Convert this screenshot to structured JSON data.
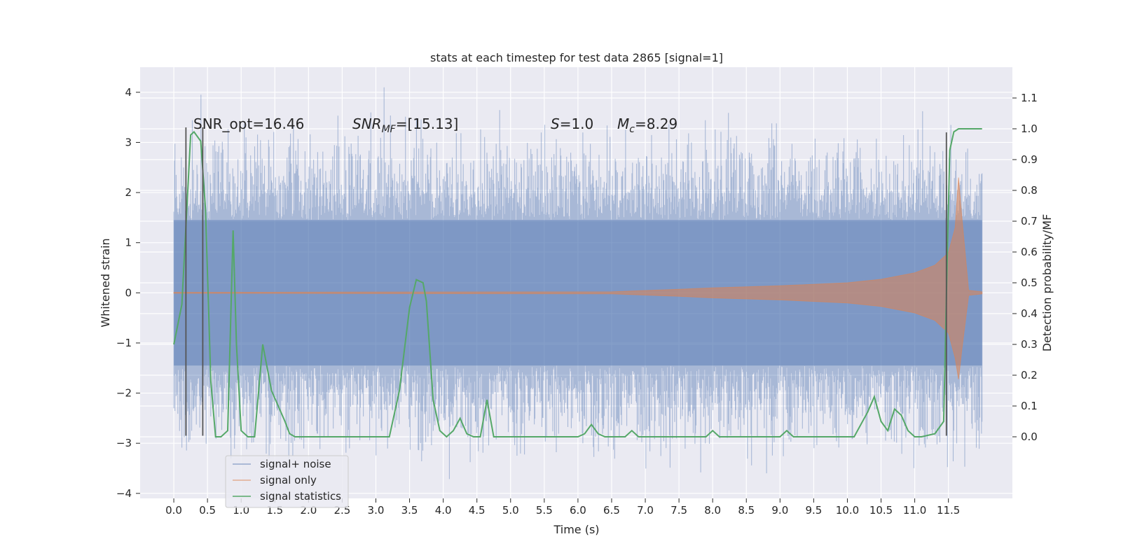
{
  "chart_data": {
    "type": "line",
    "title": "stats at each timestep for test data 2865 [signal=1]",
    "xlabel": "Time (s)",
    "ylabel_left": "Whitened strain",
    "ylabel_right": "Detection probability/MF",
    "xlim": [
      -0.5,
      12.45
    ],
    "ylim_left": [
      -4.1,
      4.5
    ],
    "ylim_right": [
      -0.2,
      1.2
    ],
    "x_ticks": [
      0.0,
      0.5,
      1.0,
      1.5,
      2.0,
      2.5,
      3.0,
      3.5,
      4.0,
      4.5,
      5.0,
      5.5,
      6.0,
      6.5,
      7.0,
      7.5,
      8.0,
      8.5,
      9.0,
      9.5,
      10.0,
      10.5,
      11.0,
      11.5
    ],
    "x_tick_labels": [
      "0.0",
      "0.5",
      "1.0",
      "1.5",
      "2.0",
      "2.5",
      "3.0",
      "3.5",
      "4.0",
      "4.5",
      "5.0",
      "5.5",
      "6.0",
      "6.5",
      "7.0",
      "7.5",
      "8.0",
      "8.5",
      "9.0",
      "9.5",
      "10.0",
      "10.5",
      "11.0",
      "11.5"
    ],
    "y_left_ticks": [
      -4,
      -3,
      -2,
      -1,
      0,
      1,
      2,
      3,
      4
    ],
    "y_left_tick_labels": [
      "−4",
      "−3",
      "−2",
      "−1",
      "0",
      "1",
      "2",
      "3",
      "4"
    ],
    "y_right_ticks": [
      0.0,
      0.1,
      0.2,
      0.3,
      0.4,
      0.5,
      0.6,
      0.7,
      0.8,
      0.9,
      1.0,
      1.1
    ],
    "y_right_tick_labels": [
      "0.0",
      "0.1",
      "0.2",
      "0.3",
      "0.4",
      "0.5",
      "0.6",
      "0.7",
      "0.8",
      "0.9",
      "1.0",
      "1.1"
    ],
    "grid": true,
    "legend_position": "lower-left",
    "annotations": {
      "snr_opt": "SNR_opt=16.46",
      "snr_mf_main": "SNR",
      "snr_mf_sub": "MF",
      "snr_mf_value": "=[15.13]",
      "s_main": "S",
      "s_value": "=1.0",
      "mc_main": "M",
      "mc_sub": "c",
      "mc_value": "=8.29"
    },
    "vertical_markers": [
      {
        "x": 0.18,
        "y_range": [
          -2.85,
          3.3
        ]
      },
      {
        "x": 0.43,
        "y_range": [
          -2.85,
          3.3
        ]
      },
      {
        "x": 11.47,
        "y_range": [
          -2.85,
          3.2
        ]
      }
    ],
    "series": [
      {
        "name": "signal+ noise",
        "color": "#4c72b0",
        "axis": "left",
        "x_range": [
          0.0,
          12.0
        ],
        "typical_amplitude": 1.45,
        "peak_amplitude": 4.1
      },
      {
        "name": "signal only",
        "color": "#dd8452",
        "axis": "left",
        "x": [
          0.0,
          6.5,
          7.5,
          8.0,
          9.0,
          10.0,
          10.5,
          11.0,
          11.3,
          11.5,
          11.6,
          11.65,
          11.7,
          11.8,
          12.0
        ],
        "envelope": [
          0.01,
          0.02,
          0.07,
          0.1,
          0.14,
          0.2,
          0.27,
          0.4,
          0.55,
          0.8,
          1.3,
          2.3,
          1.5,
          0.05,
          0.02
        ]
      },
      {
        "name": "signal statistics",
        "color": "#55a868",
        "axis": "right",
        "x": [
          0.0,
          0.12,
          0.25,
          0.3,
          0.4,
          0.47,
          0.55,
          0.62,
          0.7,
          0.8,
          0.88,
          0.93,
          1.0,
          1.1,
          1.2,
          1.32,
          1.45,
          1.55,
          1.65,
          1.72,
          1.8,
          1.9,
          2.0,
          2.5,
          3.0,
          3.2,
          3.35,
          3.5,
          3.6,
          3.7,
          3.75,
          3.85,
          3.95,
          4.05,
          4.15,
          4.25,
          4.35,
          4.45,
          4.55,
          4.65,
          4.75,
          4.85,
          5.0,
          5.5,
          6.0,
          6.1,
          6.2,
          6.3,
          6.4,
          6.5,
          6.6,
          6.7,
          6.8,
          6.9,
          7.0,
          7.4,
          7.5,
          7.6,
          7.9,
          8.0,
          8.1,
          8.5,
          9.0,
          9.1,
          9.2,
          9.5,
          10.0,
          10.1,
          10.3,
          10.4,
          10.5,
          10.6,
          10.7,
          10.8,
          10.9,
          11.0,
          11.1,
          11.3,
          11.43,
          11.48,
          11.52,
          11.58,
          11.65,
          11.7,
          11.8,
          12.0
        ],
        "y": [
          0.3,
          0.43,
          0.98,
          0.99,
          0.96,
          0.74,
          0.18,
          0.0,
          0.0,
          0.02,
          0.67,
          0.3,
          0.02,
          0.0,
          0.0,
          0.3,
          0.15,
          0.1,
          0.05,
          0.01,
          0.0,
          0.0,
          0.0,
          0.0,
          0.0,
          0.0,
          0.15,
          0.42,
          0.51,
          0.5,
          0.44,
          0.12,
          0.02,
          0.0,
          0.02,
          0.06,
          0.01,
          0.0,
          0.0,
          0.12,
          0.0,
          0.0,
          0.0,
          0.0,
          0.0,
          0.01,
          0.04,
          0.01,
          0.0,
          0.0,
          0.0,
          0.0,
          0.02,
          0.0,
          0.0,
          0.0,
          0.0,
          0.0,
          0.0,
          0.02,
          0.0,
          0.0,
          0.0,
          0.02,
          0.0,
          0.0,
          0.0,
          0.0,
          0.08,
          0.13,
          0.05,
          0.02,
          0.09,
          0.07,
          0.02,
          0.0,
          0.0,
          0.01,
          0.05,
          0.55,
          0.93,
          0.99,
          1.0,
          1.0,
          1.0,
          1.0
        ]
      }
    ]
  }
}
